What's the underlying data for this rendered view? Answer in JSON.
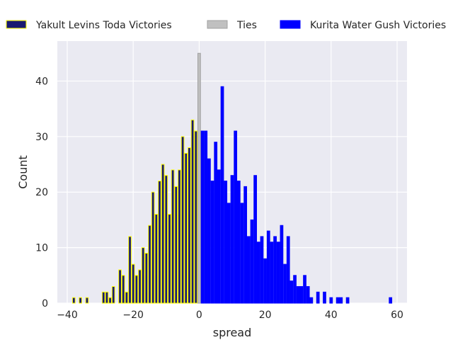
{
  "chart_data": {
    "type": "bar",
    "title": "",
    "xlabel": "spread",
    "ylabel": "Count",
    "xlim": [
      -43,
      63
    ],
    "ylim": [
      0,
      47.2
    ],
    "grid": true,
    "legend_position": "top, outside plot",
    "x_ticks": [
      -40,
      -20,
      0,
      20,
      40,
      60
    ],
    "y_ticks": [
      0,
      10,
      20,
      30,
      40
    ],
    "x_tick_labels": [
      "−40",
      "−20",
      "0",
      "20",
      "40",
      "60"
    ],
    "y_tick_labels": [
      "0",
      "10",
      "20",
      "30",
      "40"
    ],
    "colors": {
      "background": "#eaeaf2",
      "grid": "#ffffff",
      "yakult_fill": "#191970",
      "yakult_edge": "#ffff00",
      "ties_fill": "#c0c0c0",
      "ties_edge": "#a0a0a0",
      "kurita_fill": "#0000ff"
    },
    "series": [
      {
        "name": "Yakult Levins Toda Victories",
        "x": [
          -38,
          -36,
          -34,
          -29,
          -28,
          -27,
          -26,
          -24,
          -23,
          -22,
          -21,
          -20,
          -19,
          -18,
          -17,
          -16,
          -15,
          -14,
          -13,
          -12,
          -11,
          -10,
          -9,
          -8,
          -7,
          -6,
          -5,
          -4,
          -3,
          -2,
          -1
        ],
        "values": [
          1,
          1,
          1,
          2,
          2,
          1,
          3,
          6,
          5,
          2,
          12,
          7,
          5,
          6,
          10,
          9,
          14,
          20,
          16,
          22,
          25,
          23,
          16,
          24,
          21,
          24,
          30,
          27,
          28,
          33,
          31
        ]
      },
      {
        "name": "Ties",
        "x": [
          0
        ],
        "values": [
          45
        ]
      },
      {
        "name": "Kurita Water Gush Victories",
        "x": [
          1,
          2,
          3,
          4,
          5,
          6,
          7,
          8,
          9,
          10,
          11,
          12,
          13,
          14,
          15,
          16,
          17,
          18,
          19,
          20,
          21,
          22,
          23,
          24,
          25,
          26,
          27,
          28,
          29,
          30,
          31,
          32,
          33,
          34,
          36,
          38,
          40,
          42,
          43,
          45,
          58
        ],
        "values": [
          31,
          31,
          26,
          22,
          29,
          24,
          39,
          22,
          18,
          23,
          31,
          22,
          18,
          21,
          12,
          15,
          23,
          11,
          12,
          8,
          13,
          11,
          12,
          11,
          14,
          7,
          12,
          4,
          5,
          3,
          3,
          5,
          3,
          1,
          2,
          2,
          1,
          1,
          1,
          1,
          1
        ]
      }
    ]
  }
}
